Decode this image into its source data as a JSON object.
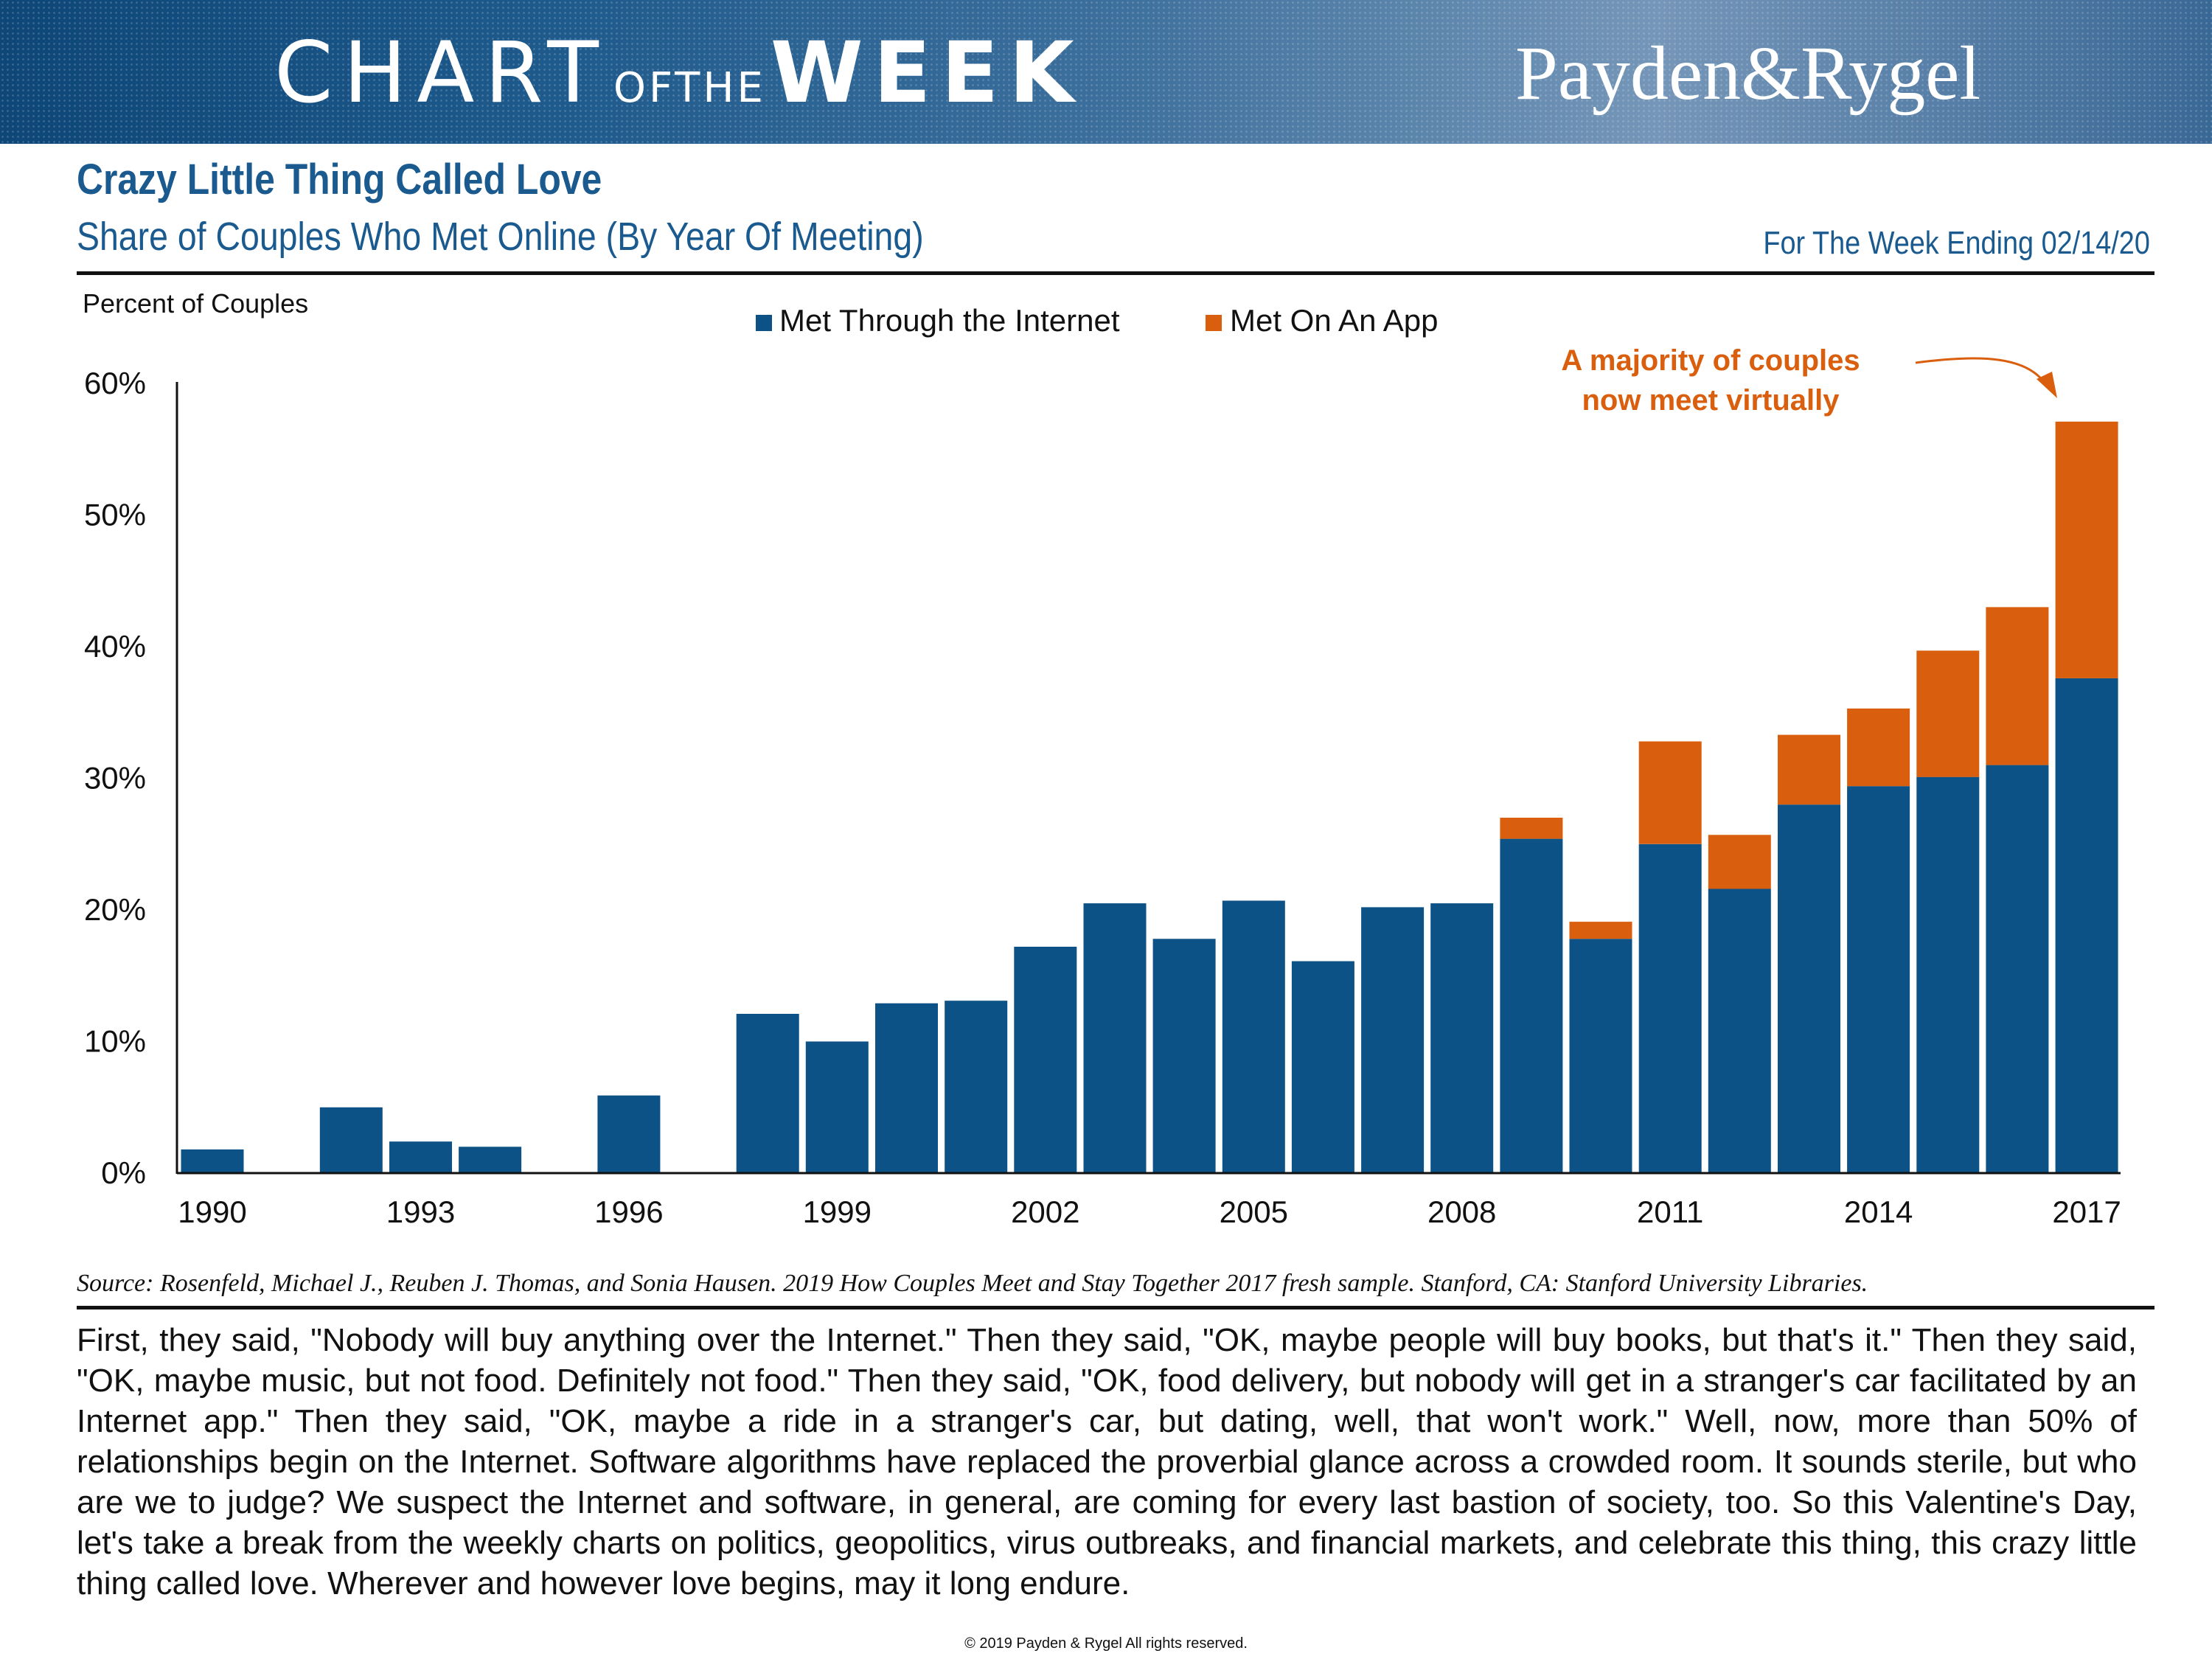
{
  "header": {
    "chart_word": "CHART",
    "of_the": "OFTHE",
    "week_word": "WEEK",
    "brand": "Payden&Rygel"
  },
  "title": "Crazy Little Thing Called Love",
  "subtitle": "Share of Couples Who Met Online (By Year Of Meeting)",
  "week_ending": "For The Week Ending 02/14/20",
  "source": "Source: Rosenfeld, Michael J., Reuben J. Thomas, and Sonia Hausen. 2019 How Couples Meet and Stay Together 2017 fresh sample. Stanford, CA: Stanford University Libraries.",
  "body_text": "First, they said, \"Nobody will buy anything over the Internet.\" Then they said, \"OK, maybe people will buy books, but that's it.\" Then they said, \"OK, maybe music, but not food. Definitely not food.\" Then they said, \"OK, food delivery, but nobody will get in a stranger's car facilitated by an Internet app.\" Then they said, \"OK, maybe a ride in a stranger's car, but dating, well, that won't work.\" Well, now, more than 50% of relationships begin on the Internet. Software algorithms have replaced the proverbial glance across a crowded room. It sounds sterile, but who are we to judge? We suspect the Internet and software, in general, are coming for every last bastion of society, too. So this Valentine's Day, let's take a break from the weekly charts on politics, geopolitics, virus outbreaks, and financial markets, and celebrate this thing, this crazy little thing called love. Wherever and however love begins, may it long endure.",
  "copyright": "© 2019 Payden & Rygel All rights reserved.",
  "colors": {
    "internet": "#0c5286",
    "app": "#d95f0e",
    "accent": "#1a5a8f"
  },
  "chart_data": {
    "type": "bar",
    "stacked": true,
    "title": "Share of Couples Who Met Online (By Year Of Meeting)",
    "ylabel": "Percent of Couples",
    "xlabel": "",
    "ylim": [
      0,
      60
    ],
    "yticks": [
      0,
      10,
      20,
      30,
      40,
      50,
      60
    ],
    "ytick_labels": [
      "0%",
      "10%",
      "20%",
      "30%",
      "40%",
      "50%",
      "60%"
    ],
    "categories": [
      1990,
      1991,
      1992,
      1993,
      1994,
      1995,
      1996,
      1997,
      1998,
      1999,
      2000,
      2001,
      2002,
      2003,
      2004,
      2005,
      2006,
      2007,
      2008,
      2009,
      2010,
      2011,
      2012,
      2013,
      2014,
      2015,
      2016,
      2017
    ],
    "xtick_labels": [
      "1990",
      "1993",
      "1996",
      "1999",
      "2002",
      "2005",
      "2008",
      "2011",
      "2014",
      "2017"
    ],
    "legend_position": "top-center",
    "series": [
      {
        "name": "Met Through the Internet",
        "color": "#0c5286",
        "values": [
          1.8,
          0,
          5.0,
          2.4,
          2.0,
          0,
          5.9,
          0,
          12.1,
          10.0,
          12.9,
          13.1,
          17.2,
          20.5,
          17.8,
          20.7,
          16.1,
          20.2,
          20.5,
          25.4,
          17.8,
          25.0,
          21.6,
          28.0,
          29.4,
          30.1,
          31.0,
          37.6
        ]
      },
      {
        "name": "Met On An App",
        "color": "#d95f0e",
        "values": [
          0,
          0,
          0,
          0,
          0,
          0,
          0,
          0,
          0,
          0,
          0,
          0,
          0,
          0,
          0,
          0,
          0,
          0,
          0,
          1.6,
          1.3,
          7.8,
          4.1,
          5.3,
          5.9,
          9.6,
          12.0,
          19.5
        ]
      }
    ],
    "annotation": {
      "line1": "A majority of couples",
      "line2": "now meet virtually"
    }
  }
}
